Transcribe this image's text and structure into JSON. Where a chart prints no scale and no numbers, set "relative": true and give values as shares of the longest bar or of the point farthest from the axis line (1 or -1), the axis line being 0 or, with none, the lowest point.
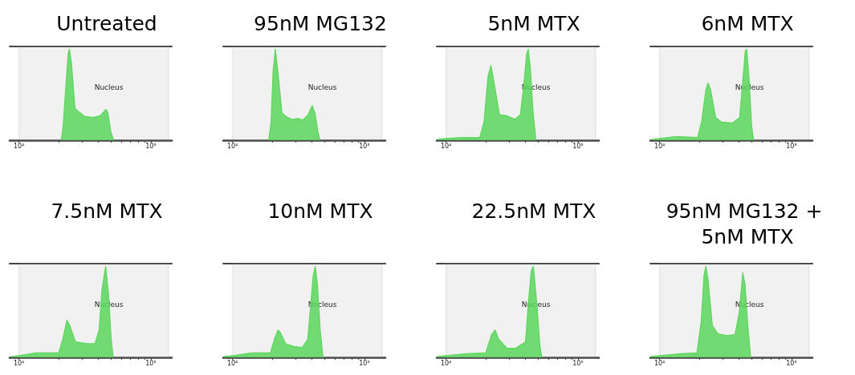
{
  "chart_data": [
    {
      "type": "area",
      "title": "Untreated",
      "relative": true,
      "xlim": [
        8500,
        144000
      ],
      "log": "x",
      "grid": false,
      "xticks": [
        {
          "value": 10000,
          "label": "10⁴"
        },
        {
          "value": 20000,
          "label": null
        },
        {
          "value": 30000,
          "label": null
        },
        {
          "value": 40000,
          "label": null
        },
        {
          "value": 50000,
          "label": null
        },
        {
          "value": 60000,
          "label": null
        },
        {
          "value": 70000,
          "label": null
        },
        {
          "value": 80000,
          "label": null
        },
        {
          "value": 90000,
          "label": null
        },
        {
          "value": 100000,
          "label": "10⁵"
        }
      ],
      "bands": [
        {
          "axis": "x",
          "from": 10000,
          "to": 136000,
          "label": "Nucleus",
          "color": "#8c8c8c"
        }
      ],
      "series": [
        {
          "color": "#5cd65c",
          "x": [
            20900,
            21600,
            22700,
            23600,
            24100,
            25000,
            26600,
            28000,
            31600,
            36600,
            41400,
            45700,
            47200,
            49600,
            52100
          ],
          "values": [
            0,
            0.15,
            0.6,
            0.95,
            1.0,
            0.85,
            0.35,
            0.32,
            0.26,
            0.25,
            0.27,
            0.34,
            0.3,
            0.1,
            0
          ]
        }
      ]
    },
    {
      "type": "area",
      "title": "95nM MG132",
      "relative": true,
      "xlim": [
        8500,
        144000
      ],
      "log": "x",
      "grid": false,
      "xticks": [
        {
          "value": 10000,
          "label": "10⁴"
        },
        {
          "value": 20000,
          "label": null
        },
        {
          "value": 30000,
          "label": null
        },
        {
          "value": 40000,
          "label": null
        },
        {
          "value": 50000,
          "label": null
        },
        {
          "value": 60000,
          "label": null
        },
        {
          "value": 70000,
          "label": null
        },
        {
          "value": 80000,
          "label": null
        },
        {
          "value": 90000,
          "label": null
        },
        {
          "value": 100000,
          "label": "10⁵"
        }
      ],
      "bands": [
        {
          "axis": "x",
          "from": 10000,
          "to": 136000,
          "label": "Nucleus",
          "color": "#8c8c8c"
        }
      ],
      "series": [
        {
          "color": "#5cd65c",
          "x": [
            18800,
            19600,
            20300,
            21100,
            22100,
            23700,
            25500,
            28000,
            31600,
            34000,
            37400,
            40200,
            42200,
            44300,
            46000
          ],
          "values": [
            0,
            0.2,
            0.75,
            1.0,
            0.75,
            0.3,
            0.26,
            0.23,
            0.24,
            0.22,
            0.28,
            0.38,
            0.3,
            0.1,
            0
          ]
        }
      ]
    },
    {
      "type": "area",
      "title": "5nM MTX",
      "relative": true,
      "xlim": [
        8500,
        144000
      ],
      "log": "x",
      "grid": false,
      "xticks": [
        {
          "value": 10000,
          "label": "10⁴"
        },
        {
          "value": 20000,
          "label": null
        },
        {
          "value": 30000,
          "label": null
        },
        {
          "value": 40000,
          "label": null
        },
        {
          "value": 50000,
          "label": null
        },
        {
          "value": 60000,
          "label": null
        },
        {
          "value": 70000,
          "label": null
        },
        {
          "value": 80000,
          "label": null
        },
        {
          "value": 90000,
          "label": null
        },
        {
          "value": 100000,
          "label": "10⁵"
        }
      ],
      "bands": [
        {
          "axis": "x",
          "from": 10000,
          "to": 136000,
          "label": "Nucleus",
          "color": "#8c8c8c"
        }
      ],
      "series": [
        {
          "color": "#5cd65c",
          "x": [
            8600,
            10000,
            13100,
            18000,
            19400,
            20800,
            21900,
            23000,
            25400,
            28700,
            33200,
            36600,
            38800,
            40800,
            42000,
            43500,
            45700,
            48000
          ],
          "values": [
            0.01,
            0.02,
            0.03,
            0.03,
            0.2,
            0.7,
            0.82,
            0.65,
            0.28,
            0.27,
            0.23,
            0.28,
            0.6,
            0.95,
            1.0,
            0.8,
            0.3,
            0
          ]
        }
      ]
    },
    {
      "type": "area",
      "title": "6nM MTX",
      "relative": true,
      "xlim": [
        8500,
        144000
      ],
      "log": "x",
      "grid": false,
      "xticks": [
        {
          "value": 10000,
          "label": "10⁴"
        },
        {
          "value": 20000,
          "label": null
        },
        {
          "value": 30000,
          "label": null
        },
        {
          "value": 40000,
          "label": null
        },
        {
          "value": 50000,
          "label": null
        },
        {
          "value": 60000,
          "label": null
        },
        {
          "value": 70000,
          "label": null
        },
        {
          "value": 80000,
          "label": null
        },
        {
          "value": 90000,
          "label": null
        },
        {
          "value": 100000,
          "label": "10⁵"
        }
      ],
      "bands": [
        {
          "axis": "x",
          "from": 10000,
          "to": 136000,
          "label": "Nucleus",
          "color": "#8c8c8c"
        }
      ],
      "series": [
        {
          "color": "#5cd65c",
          "x": [
            8850,
            10000,
            13400,
            19400,
            20800,
            22400,
            23300,
            24400,
            26600,
            29400,
            35700,
            40400,
            42400,
            44600,
            45700,
            47500,
            49900,
            51600
          ],
          "values": [
            0.01,
            0.02,
            0.04,
            0.03,
            0.2,
            0.55,
            0.63,
            0.55,
            0.25,
            0.2,
            0.19,
            0.25,
            0.6,
            0.98,
            1.0,
            0.7,
            0.15,
            0
          ]
        }
      ]
    },
    {
      "type": "area",
      "title": "7.5nM MTX",
      "relative": true,
      "xlim": [
        8500,
        144000
      ],
      "log": "x",
      "grid": false,
      "xticks": [
        {
          "value": 10000,
          "label": "10⁴"
        },
        {
          "value": 20000,
          "label": null
        },
        {
          "value": 30000,
          "label": null
        },
        {
          "value": 40000,
          "label": null
        },
        {
          "value": 50000,
          "label": null
        },
        {
          "value": 60000,
          "label": null
        },
        {
          "value": 70000,
          "label": null
        },
        {
          "value": 80000,
          "label": null
        },
        {
          "value": 90000,
          "label": null
        },
        {
          "value": 100000,
          "label": "10⁵"
        }
      ],
      "bands": [
        {
          "axis": "x",
          "from": 10000,
          "to": 136000,
          "label": "Nucleus",
          "color": "#8c8c8c"
        }
      ],
      "series": [
        {
          "color": "#5cd65c",
          "x": [
            8810,
            10000,
            13500,
            20000,
            21500,
            23100,
            24300,
            26800,
            32600,
            37700,
            40500,
            42600,
            45400,
            47700,
            50000,
            51800
          ],
          "values": [
            0.01,
            0.02,
            0.05,
            0.05,
            0.2,
            0.41,
            0.35,
            0.17,
            0.15,
            0.15,
            0.3,
            0.75,
            1.0,
            0.7,
            0.2,
            0
          ]
        }
      ]
    },
    {
      "type": "area",
      "title": "10nM MTX",
      "relative": true,
      "xlim": [
        8500,
        144000
      ],
      "log": "x",
      "grid": false,
      "xticks": [
        {
          "value": 10000,
          "label": "10⁴"
        },
        {
          "value": 20000,
          "label": null
        },
        {
          "value": 30000,
          "label": null
        },
        {
          "value": 40000,
          "label": null
        },
        {
          "value": 50000,
          "label": null
        },
        {
          "value": 60000,
          "label": null
        },
        {
          "value": 70000,
          "label": null
        },
        {
          "value": 80000,
          "label": null
        },
        {
          "value": 90000,
          "label": null
        },
        {
          "value": 100000,
          "label": "10⁵"
        }
      ],
      "bands": [
        {
          "axis": "x",
          "from": 10000,
          "to": 136000,
          "label": "Nucleus",
          "color": "#8c8c8c"
        }
      ],
      "series": [
        {
          "color": "#5cd65c",
          "x": [
            8600,
            10000,
            14200,
            19400,
            20800,
            22100,
            22900,
            25300,
            29200,
            33800,
            37200,
            39000,
            40900,
            42400,
            44000,
            46200,
            48500
          ],
          "values": [
            0.01,
            0.02,
            0.05,
            0.05,
            0.2,
            0.3,
            0.28,
            0.15,
            0.12,
            0.11,
            0.2,
            0.55,
            0.9,
            1.0,
            0.8,
            0.3,
            0
          ]
        }
      ]
    },
    {
      "type": "area",
      "title": "22.5nM MTX",
      "relative": true,
      "xlim": [
        8500,
        144000
      ],
      "log": "x",
      "grid": false,
      "xticks": [
        {
          "value": 10000,
          "label": "10⁴"
        },
        {
          "value": 20000,
          "label": null
        },
        {
          "value": 30000,
          "label": null
        },
        {
          "value": 40000,
          "label": null
        },
        {
          "value": 50000,
          "label": null
        },
        {
          "value": 60000,
          "label": null
        },
        {
          "value": 70000,
          "label": null
        },
        {
          "value": 80000,
          "label": null
        },
        {
          "value": 90000,
          "label": null
        },
        {
          "value": 100000,
          "label": "10⁵"
        }
      ],
      "bands": [
        {
          "axis": "x",
          "from": 10000,
          "to": 136000,
          "label": "Nucleus",
          "color": "#8c8c8c"
        }
      ],
      "series": [
        {
          "color": "#5cd65c",
          "x": [
            8600,
            10000,
            14500,
            20000,
            22100,
            23600,
            25000,
            29000,
            33600,
            40000,
            42100,
            44200,
            45900,
            48700,
            51300,
            53100
          ],
          "values": [
            0.01,
            0.02,
            0.04,
            0.05,
            0.25,
            0.3,
            0.2,
            0.1,
            0.1,
            0.17,
            0.6,
            0.95,
            1.0,
            0.6,
            0.15,
            0
          ]
        }
      ]
    },
    {
      "type": "area",
      "title": "95nM MG132 + 5nM MTX",
      "relative": true,
      "xlim": [
        8500,
        144000
      ],
      "log": "x",
      "grid": false,
      "xticks": [
        {
          "value": 10000,
          "label": "10⁴"
        },
        {
          "value": 20000,
          "label": null
        },
        {
          "value": 30000,
          "label": null
        },
        {
          "value": 40000,
          "label": null
        },
        {
          "value": 50000,
          "label": null
        },
        {
          "value": 60000,
          "label": null
        },
        {
          "value": 70000,
          "label": null
        },
        {
          "value": 80000,
          "label": null
        },
        {
          "value": 90000,
          "label": null
        },
        {
          "value": 100000,
          "label": "10⁵"
        }
      ],
      "bands": [
        {
          "axis": "x",
          "from": 10000,
          "to": 136000,
          "label": "Nucleus",
          "color": "#8c8c8c"
        }
      ],
      "series": [
        {
          "color": "#5cd65c",
          "x": [
            8600,
            10000,
            14600,
            19200,
            20700,
            21700,
            22400,
            23300,
            25100,
            27700,
            32100,
            37300,
            40200,
            42700,
            44400,
            46600,
            49000
          ],
          "values": [
            0.01,
            0.02,
            0.04,
            0.05,
            0.4,
            0.9,
            1.0,
            0.85,
            0.35,
            0.26,
            0.24,
            0.25,
            0.5,
            0.93,
            0.8,
            0.35,
            0
          ]
        }
      ]
    }
  ]
}
